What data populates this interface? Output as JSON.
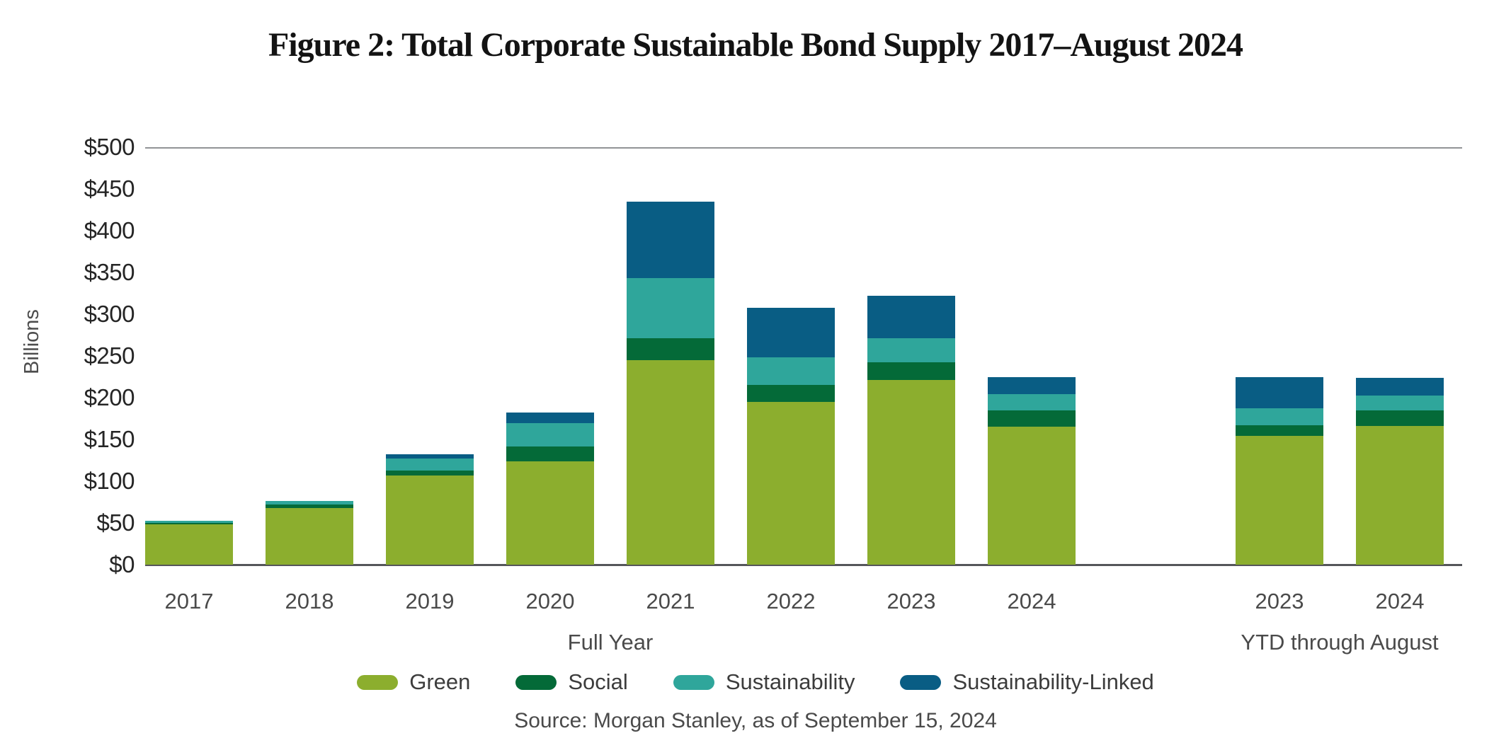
{
  "title": "Figure 2: Total Corporate Sustainable Bond Supply 2017–August 2024",
  "y_axis_title": "Billions",
  "x_groups": {
    "full_year": "Full Year",
    "ytd": "YTD through August"
  },
  "source": "Source: Morgan Stanley, as of September 15, 2024",
  "legend": [
    {
      "label": "Green",
      "color": "#8CAE2E"
    },
    {
      "label": "Social",
      "color": "#046A38"
    },
    {
      "label": "Sustainability",
      "color": "#2FA69B"
    },
    {
      "label": "Sustainability-Linked",
      "color": "#095D84"
    }
  ],
  "chart_data": {
    "type": "bar",
    "stacked": true,
    "title": "Figure 2: Total Corporate Sustainable Bond Supply 2017–August 2024",
    "ylabel": "Billions",
    "unit": "USD billions",
    "ylim": [
      0,
      500
    ],
    "y_tick_step": 50,
    "y_tick_labels": [
      "$500",
      "$450",
      "$400",
      "$350",
      "$300",
      "$250",
      "$200",
      "$150",
      "$100",
      "$50",
      "$0"
    ],
    "grid": "top-line-and-baseline-only",
    "legend_position": "bottom",
    "groups": [
      {
        "name": "Full Year",
        "categories": [
          "2017",
          "2018",
          "2019",
          "2020",
          "2021",
          "2022",
          "2023",
          "2024"
        ],
        "series": [
          {
            "name": "Green",
            "values": [
              48,
              68,
              107,
              124,
              245,
              195,
              221,
              165
            ]
          },
          {
            "name": "Social",
            "values": [
              2,
              4,
              6,
              18,
              26,
              20,
              21,
              20
            ]
          },
          {
            "name": "Sustainability",
            "values": [
              3,
              4,
              14,
              28,
              72,
              33,
              29,
              19
            ]
          },
          {
            "name": "Sustainability-Linked",
            "values": [
              0,
              0,
              5,
              12,
              92,
              60,
              51,
              21
            ]
          }
        ],
        "totals": [
          53,
          76,
          132,
          182,
          435,
          308,
          322,
          225
        ]
      },
      {
        "name": "YTD through August",
        "categories": [
          "2023",
          "2024"
        ],
        "series": [
          {
            "name": "Green",
            "values": [
              154,
              166
            ]
          },
          {
            "name": "Social",
            "values": [
              13,
              19
            ]
          },
          {
            "name": "Sustainability",
            "values": [
              20,
              18
            ]
          },
          {
            "name": "Sustainability-Linked",
            "values": [
              38,
              21
            ]
          }
        ],
        "totals": [
          225,
          224
        ]
      }
    ]
  }
}
